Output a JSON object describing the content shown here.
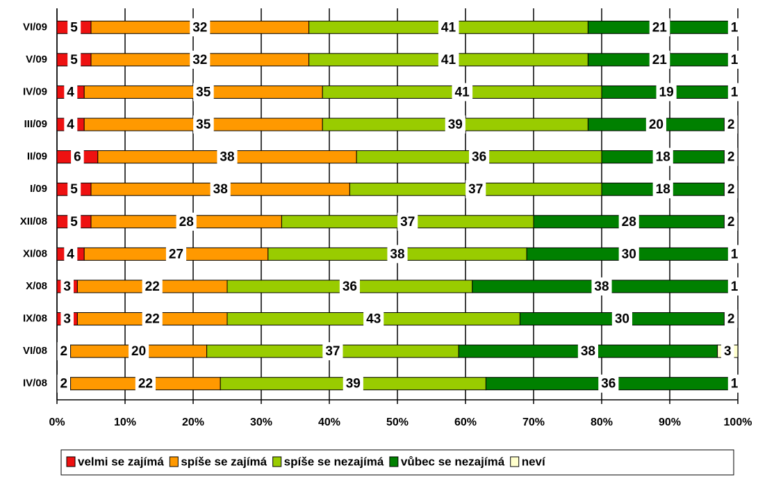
{
  "chart_data": {
    "type": "stacked_bar_horizontal",
    "categories": [
      "VI/09",
      "V/09",
      "IV/09",
      "III/09",
      "II/09",
      "I/09",
      "XII/08",
      "XI/08",
      "X/08",
      "IX/08",
      "VI/08",
      "IV/08"
    ],
    "series": [
      {
        "name": "velmi se zajímá",
        "color": "#ee1111",
        "values": [
          5,
          5,
          4,
          4,
          6,
          5,
          5,
          4,
          3,
          3,
          2,
          2
        ]
      },
      {
        "name": "spíše se zajímá",
        "color": "#ff9900",
        "values": [
          32,
          32,
          35,
          35,
          38,
          38,
          28,
          27,
          22,
          22,
          20,
          22
        ]
      },
      {
        "name": "spíše se nezajímá",
        "color": "#99cc00",
        "values": [
          41,
          41,
          41,
          39,
          36,
          37,
          37,
          38,
          36,
          43,
          37,
          39
        ]
      },
      {
        "name": "vůbec se nezajímá",
        "color": "#008000",
        "values": [
          21,
          21,
          19,
          20,
          18,
          18,
          28,
          30,
          38,
          30,
          38,
          36
        ]
      },
      {
        "name": "neví",
        "color": "#ffffcc",
        "values": [
          1,
          1,
          1,
          2,
          2,
          2,
          2,
          1,
          1,
          2,
          3,
          1
        ]
      }
    ],
    "xlim": [
      0,
      100
    ],
    "xticks": [
      {
        "value": 0,
        "label": "0%"
      },
      {
        "value": 10,
        "label": "10%"
      },
      {
        "value": 20,
        "label": "20%"
      },
      {
        "value": 30,
        "label": "30%"
      },
      {
        "value": 40,
        "label": "40%"
      },
      {
        "value": 50,
        "label": "50%"
      },
      {
        "value": 60,
        "label": "60%"
      },
      {
        "value": 70,
        "label": "70%"
      },
      {
        "value": 80,
        "label": "80%"
      },
      {
        "value": 90,
        "label": "90%"
      },
      {
        "value": 100,
        "label": "100%"
      }
    ],
    "grid": true,
    "legend": "bottom"
  }
}
